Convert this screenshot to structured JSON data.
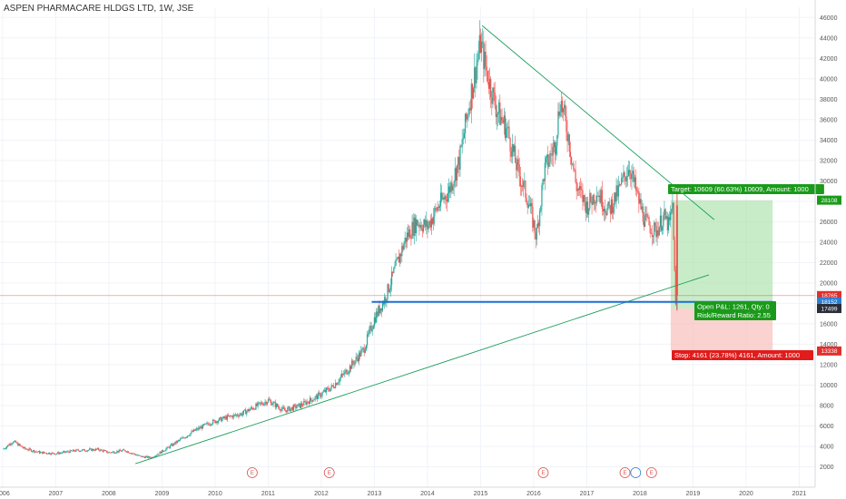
{
  "header": {
    "title": "ASPEN PHARMACARE HLDGS LTD, 1W, JSE"
  },
  "colors": {
    "up": "#26a69a",
    "down": "#ef5350",
    "grid": "#f0f3f7",
    "trendline": "#1b9e5a",
    "support": "#1f6fd1",
    "target_zone": "#a5dfa3",
    "stop_zone": "#f7b5b3",
    "target_label": "#1a9a1a",
    "stop_label": "#e21b1b",
    "price_tag_red": "#e0302d",
    "price_tag_blue": "#2f7fd1",
    "price_tag_dark": "#2a2e39"
  },
  "chart_data": {
    "type": "candlestick",
    "title": "ASPEN PHARMACARE HLDGS LTD, 1W, JSE",
    "ylim": [
      0,
      47000
    ],
    "y_ticks": [
      2000,
      4000,
      6000,
      8000,
      10000,
      12000,
      14000,
      16000,
      18000,
      20000,
      22000,
      24000,
      26000,
      28000,
      30000,
      32000,
      34000,
      36000,
      38000,
      40000,
      42000,
      44000,
      46000
    ],
    "x_ticks": [
      "2006",
      "2007",
      "2008",
      "2009",
      "2010",
      "2011",
      "2012",
      "2013",
      "2014",
      "2015",
      "2016",
      "2017",
      "2018",
      "2019",
      "2020",
      "2021"
    ],
    "x_tick_years": [
      2006,
      2007,
      2008,
      2009,
      2010,
      2011,
      2012,
      2013,
      2014,
      2015,
      2016,
      2017,
      2018,
      2019,
      2020,
      2021
    ],
    "xlim": [
      2005.95,
      2021.3
    ],
    "price_path": [
      [
        2006.0,
        3700
      ],
      [
        2006.2,
        4500
      ],
      [
        2006.4,
        3800
      ],
      [
        2006.7,
        3400
      ],
      [
        2007.0,
        3300
      ],
      [
        2007.4,
        3600
      ],
      [
        2007.8,
        3700
      ],
      [
        2008.0,
        3400
      ],
      [
        2008.3,
        3600
      ],
      [
        2008.6,
        3000
      ],
      [
        2008.8,
        2900
      ],
      [
        2009.0,
        3500
      ],
      [
        2009.3,
        4500
      ],
      [
        2009.6,
        5500
      ],
      [
        2009.9,
        6300
      ],
      [
        2010.2,
        6800
      ],
      [
        2010.5,
        7200
      ],
      [
        2010.8,
        8000
      ],
      [
        2011.0,
        8500
      ],
      [
        2011.3,
        7500
      ],
      [
        2011.6,
        8000
      ],
      [
        2011.9,
        8800
      ],
      [
        2012.2,
        9800
      ],
      [
        2012.5,
        11500
      ],
      [
        2012.8,
        13500
      ],
      [
        2013.0,
        16500
      ],
      [
        2013.2,
        18500
      ],
      [
        2013.4,
        21500
      ],
      [
        2013.6,
        24500
      ],
      [
        2013.8,
        26000
      ],
      [
        2014.0,
        25500
      ],
      [
        2014.2,
        27500
      ],
      [
        2014.4,
        29000
      ],
      [
        2014.6,
        32000
      ],
      [
        2014.8,
        38000
      ],
      [
        2015.0,
        43500
      ],
      [
        2015.1,
        41000
      ],
      [
        2015.3,
        37000
      ],
      [
        2015.5,
        35000
      ],
      [
        2015.7,
        31000
      ],
      [
        2015.9,
        28000
      ],
      [
        2016.05,
        24500
      ],
      [
        2016.2,
        31000
      ],
      [
        2016.4,
        33500
      ],
      [
        2016.5,
        38000
      ],
      [
        2016.65,
        34500
      ],
      [
        2016.8,
        29500
      ],
      [
        2017.0,
        27500
      ],
      [
        2017.2,
        29000
      ],
      [
        2017.4,
        27000
      ],
      [
        2017.6,
        29000
      ],
      [
        2017.8,
        31500
      ],
      [
        2017.95,
        28500
      ],
      [
        2018.1,
        26000
      ],
      [
        2018.3,
        25000
      ],
      [
        2018.45,
        26500
      ],
      [
        2018.55,
        25500
      ],
      [
        2018.62,
        27800
      ],
      [
        2018.67,
        17500
      ],
      [
        2018.7,
        18800
      ]
    ],
    "annotations": {
      "trendline_upper": {
        "from": [
          2015.03,
          45200
        ],
        "to": [
          2019.4,
          26200
        ]
      },
      "trendline_lower": {
        "from": [
          2008.5,
          2300
        ],
        "to": [
          2019.3,
          20800
        ]
      },
      "support_line": {
        "from": [
          2012.95,
          18150
        ],
        "to": [
          2020.5,
          18150
        ]
      },
      "target_zone": {
        "x": [
          2018.58,
          2020.5
        ],
        "y": [
          17499,
          28108
        ]
      },
      "stop_zone": {
        "x": [
          2018.58,
          2020.5
        ],
        "y": [
          13338,
          17499
        ]
      },
      "ref_line": {
        "y": 18765
      },
      "event_markers_x": [
        2010.7,
        2012.15,
        2016.18,
        2017.72,
        2018.22
      ],
      "dividend_marker_x": 2017.92
    },
    "price_tags": [
      {
        "value": 28108,
        "label": "28108",
        "color": "target_label"
      },
      {
        "value": 18765,
        "label": "18765",
        "color": "price_tag_red"
      },
      {
        "value": 18152,
        "label": "18152",
        "color": "price_tag_blue"
      },
      {
        "value": 17499,
        "label": "17499",
        "color": "price_tag_dark"
      },
      {
        "value": 13338,
        "label": "13338",
        "color": "price_tag_red"
      }
    ],
    "labels": {
      "target": "Target: 10609 (60.63%) 10609, Amount: 1000",
      "open_pnl": "Open P&L: 1261, Qty: 0",
      "risk_reward": "Risk/Reward Ratio: 2.55",
      "stop": "Stop: 4161 (23.78%) 4161, Amount: 1000",
      "event_letter": "E"
    }
  }
}
